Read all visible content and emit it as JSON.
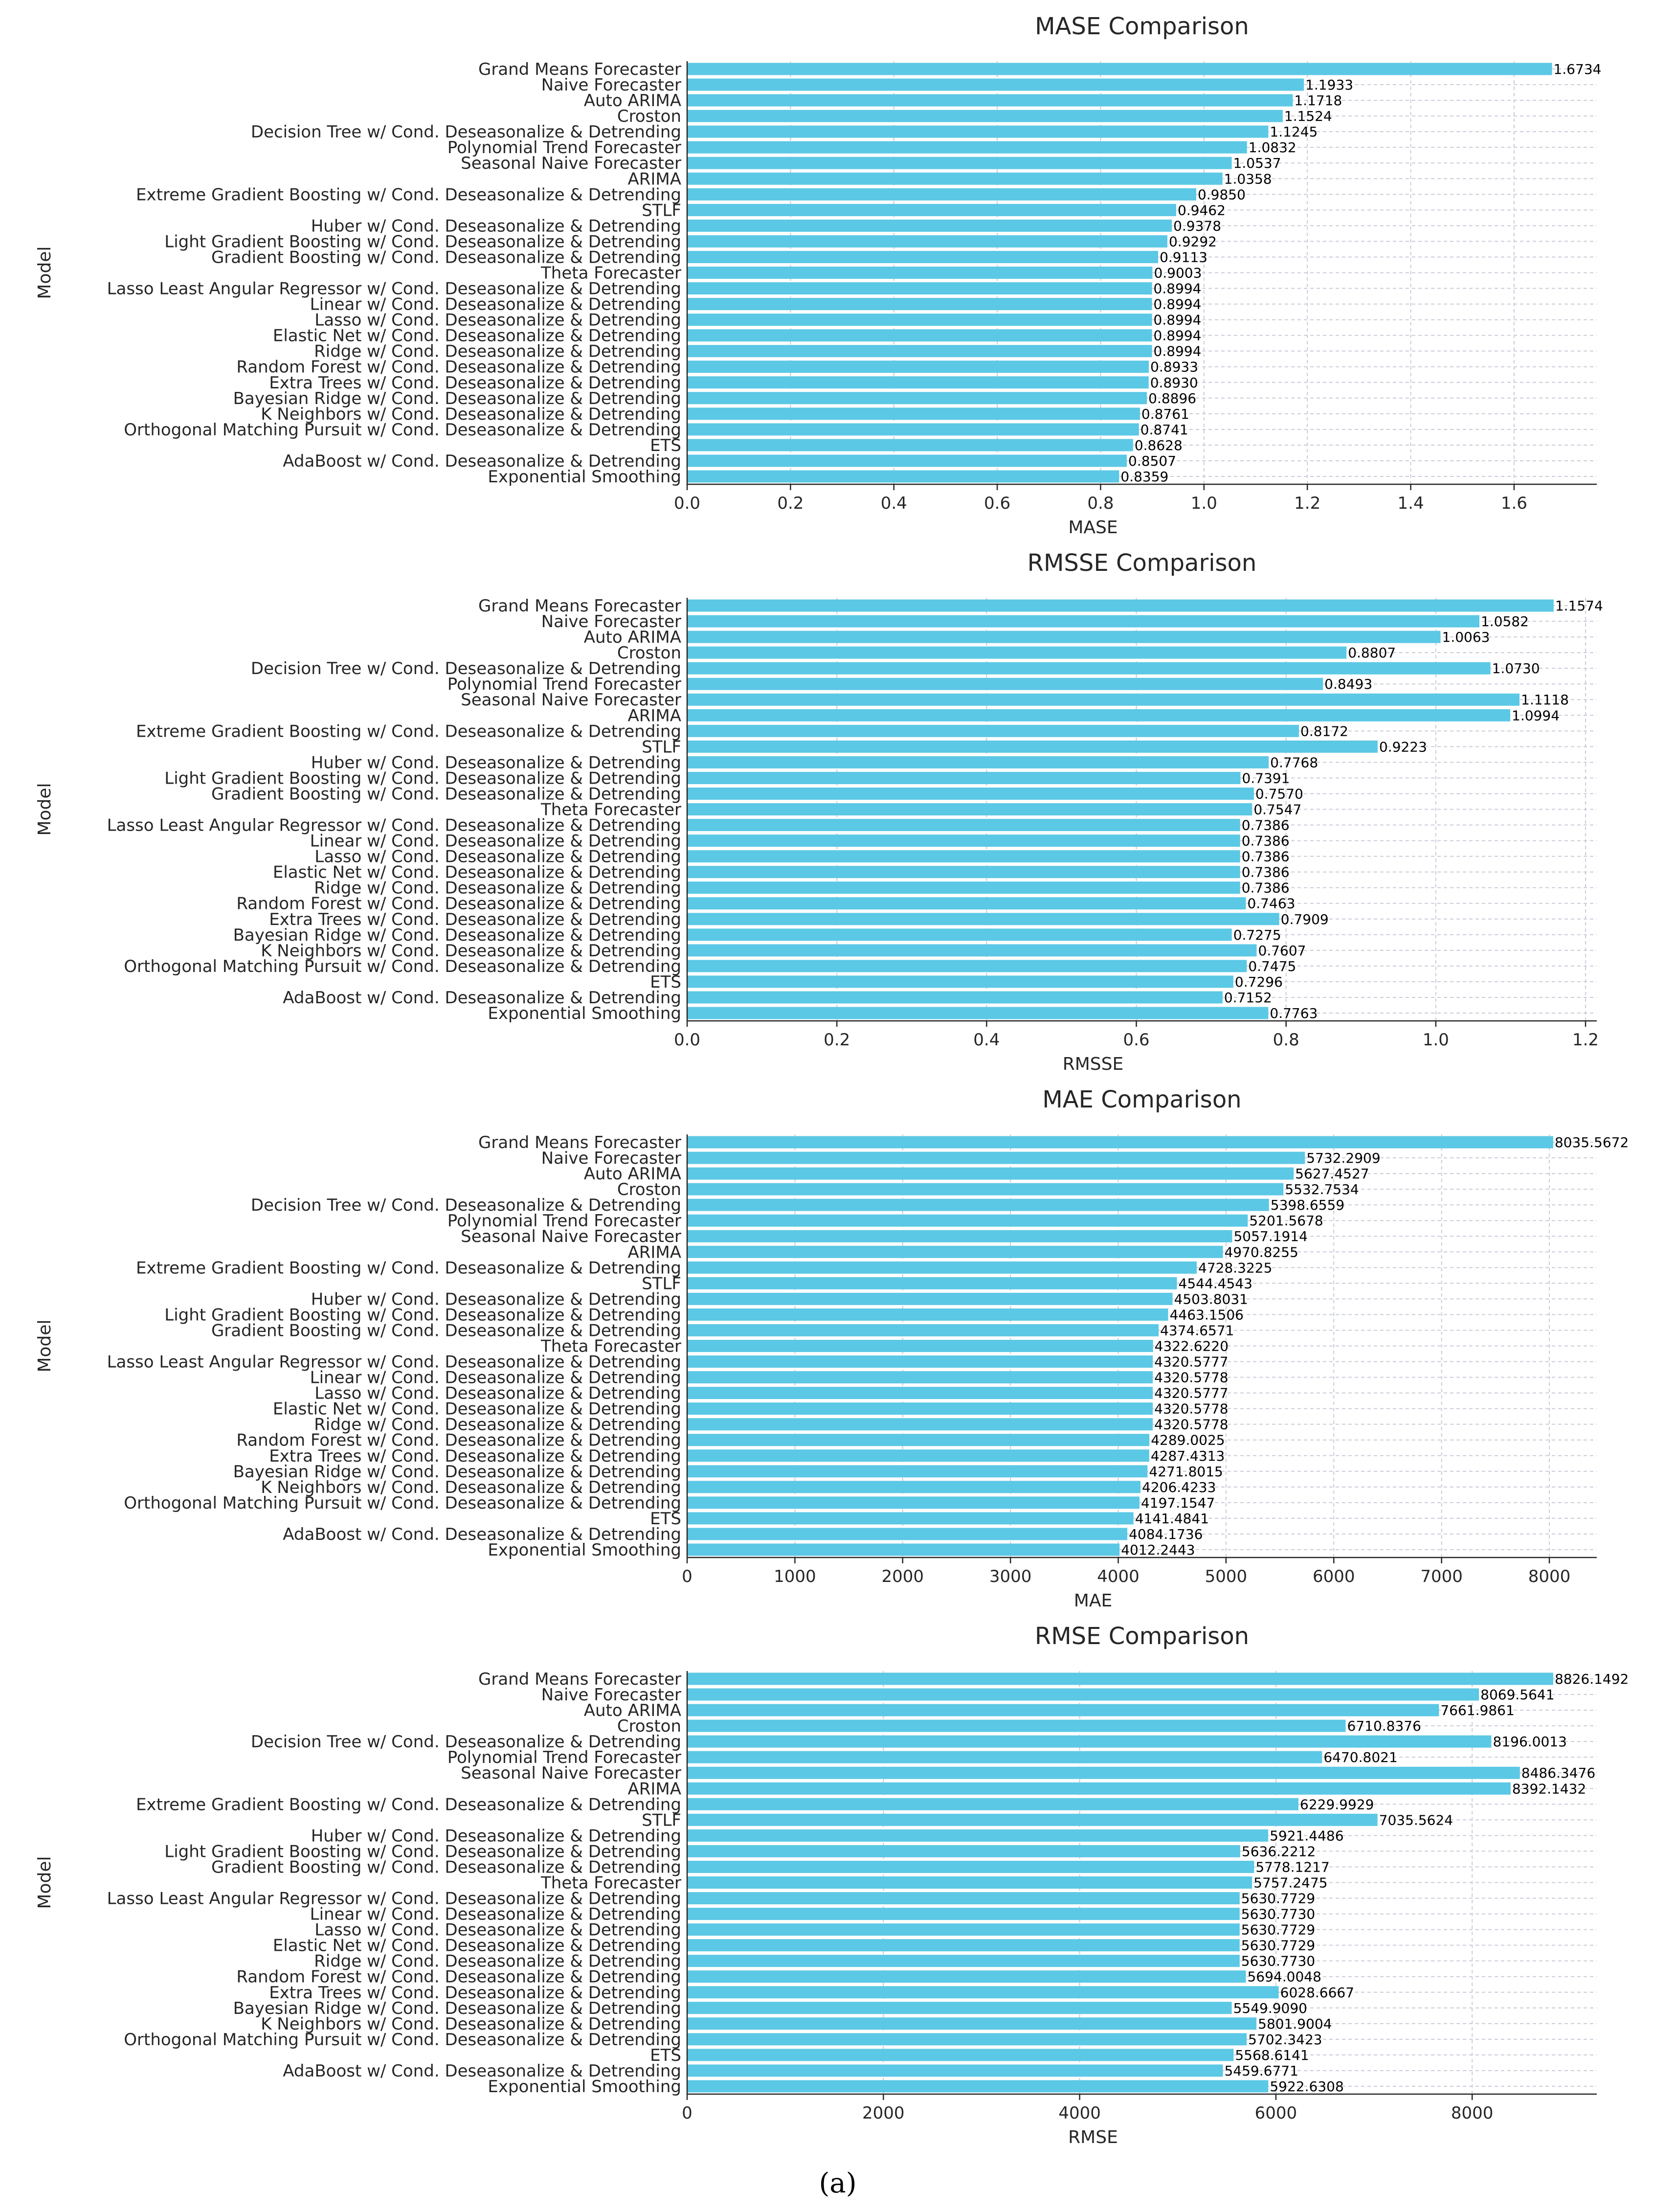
{
  "caption": "(a)",
  "chart_data": [
    {
      "type": "bar",
      "orientation": "horizontal",
      "title": "MASE Comparison",
      "xlabel": "MASE",
      "ylabel": "Model",
      "xlim": [
        0,
        1.76
      ],
      "xticks": [
        0,
        0.2,
        0.4,
        0.6,
        0.8,
        1.0,
        1.2,
        1.4,
        1.6
      ],
      "xtick_labels": [
        "0.0",
        "0.2",
        "0.4",
        "0.6",
        "0.8",
        "1.0",
        "1.2",
        "1.4",
        "1.6"
      ],
      "grid": true,
      "categories": [
        "Grand Means Forecaster",
        "Naive Forecaster",
        "Auto ARIMA",
        "Croston",
        "Decision Tree w/ Cond. Deseasonalize & Detrending",
        "Polynomial Trend Forecaster",
        "Seasonal Naive Forecaster",
        "ARIMA",
        "Extreme Gradient Boosting w/ Cond. Deseasonalize & Detrending",
        "STLF",
        "Huber w/ Cond. Deseasonalize & Detrending",
        "Light Gradient Boosting w/ Cond. Deseasonalize & Detrending",
        "Gradient Boosting w/ Cond. Deseasonalize & Detrending",
        "Theta Forecaster",
        "Lasso Least Angular Regressor w/ Cond. Deseasonalize & Detrending",
        "Linear w/ Cond. Deseasonalize & Detrending",
        "Lasso w/ Cond. Deseasonalize & Detrending",
        "Elastic Net w/ Cond. Deseasonalize & Detrending",
        "Ridge w/ Cond. Deseasonalize & Detrending",
        "Random Forest w/ Cond. Deseasonalize & Detrending",
        "Extra Trees w/ Cond. Deseasonalize & Detrending",
        "Bayesian Ridge w/ Cond. Deseasonalize & Detrending",
        "K Neighbors w/ Cond. Deseasonalize & Detrending",
        "Orthogonal Matching Pursuit w/ Cond. Deseasonalize & Detrending",
        "ETS",
        "AdaBoost w/ Cond. Deseasonalize & Detrending",
        "Exponential Smoothing"
      ],
      "values": [
        1.6734,
        1.1933,
        1.1718,
        1.1524,
        1.1245,
        1.0832,
        1.0537,
        1.0358,
        0.985,
        0.9462,
        0.9378,
        0.9292,
        0.9113,
        0.9003,
        0.8994,
        0.8994,
        0.8994,
        0.8994,
        0.8994,
        0.8933,
        0.893,
        0.8896,
        0.8761,
        0.8741,
        0.8628,
        0.8507,
        0.8359
      ],
      "value_labels": [
        "1.6734",
        "1.1933",
        "1.1718",
        "1.1524",
        "1.1245",
        "1.0832",
        "1.0537",
        "1.0358",
        "0.9850",
        "0.9462",
        "0.9378",
        "0.9292",
        "0.9113",
        "0.9003",
        "0.8994",
        "0.8994",
        "0.8994",
        "0.8994",
        "0.8994",
        "0.8933",
        "0.8930",
        "0.8896",
        "0.8761",
        "0.8741",
        "0.8628",
        "0.8507",
        "0.8359"
      ]
    },
    {
      "type": "bar",
      "orientation": "horizontal",
      "title": "RMSSE Comparison",
      "xlabel": "RMSSE",
      "ylabel": "Model",
      "xlim": [
        0,
        1.215
      ],
      "xticks": [
        0,
        0.2,
        0.4,
        0.6,
        0.8,
        1.0,
        1.2
      ],
      "xtick_labels": [
        "0.0",
        "0.2",
        "0.4",
        "0.6",
        "0.8",
        "1.0",
        "1.2"
      ],
      "grid": true,
      "categories": [
        "Grand Means Forecaster",
        "Naive Forecaster",
        "Auto ARIMA",
        "Croston",
        "Decision Tree w/ Cond. Deseasonalize & Detrending",
        "Polynomial Trend Forecaster",
        "Seasonal Naive Forecaster",
        "ARIMA",
        "Extreme Gradient Boosting w/ Cond. Deseasonalize & Detrending",
        "STLF",
        "Huber w/ Cond. Deseasonalize & Detrending",
        "Light Gradient Boosting w/ Cond. Deseasonalize & Detrending",
        "Gradient Boosting w/ Cond. Deseasonalize & Detrending",
        "Theta Forecaster",
        "Lasso Least Angular Regressor w/ Cond. Deseasonalize & Detrending",
        "Linear w/ Cond. Deseasonalize & Detrending",
        "Lasso w/ Cond. Deseasonalize & Detrending",
        "Elastic Net w/ Cond. Deseasonalize & Detrending",
        "Ridge w/ Cond. Deseasonalize & Detrending",
        "Random Forest w/ Cond. Deseasonalize & Detrending",
        "Extra Trees w/ Cond. Deseasonalize & Detrending",
        "Bayesian Ridge w/ Cond. Deseasonalize & Detrending",
        "K Neighbors w/ Cond. Deseasonalize & Detrending",
        "Orthogonal Matching Pursuit w/ Cond. Deseasonalize & Detrending",
        "ETS",
        "AdaBoost w/ Cond. Deseasonalize & Detrending",
        "Exponential Smoothing"
      ],
      "values": [
        1.1574,
        1.0582,
        1.0063,
        0.8807,
        1.073,
        0.8493,
        1.1118,
        1.0994,
        0.8172,
        0.9223,
        0.7768,
        0.7391,
        0.757,
        0.7547,
        0.7386,
        0.7386,
        0.7386,
        0.7386,
        0.7386,
        0.7463,
        0.7909,
        0.7275,
        0.7607,
        0.7475,
        0.7296,
        0.7152,
        0.7763
      ],
      "value_labels": [
        "1.1574",
        "1.0582",
        "1.0063",
        "0.8807",
        "1.0730",
        "0.8493",
        "1.1118",
        "1.0994",
        "0.8172",
        "0.9223",
        "0.7768",
        "0.7391",
        "0.7570",
        "0.7547",
        "0.7386",
        "0.7386",
        "0.7386",
        "0.7386",
        "0.7386",
        "0.7463",
        "0.7909",
        "0.7275",
        "0.7607",
        "0.7475",
        "0.7296",
        "0.7152",
        "0.7763"
      ]
    },
    {
      "type": "bar",
      "orientation": "horizontal",
      "title": "MAE Comparison",
      "xlabel": "MAE",
      "ylabel": "Model",
      "xlim": [
        0,
        8440
      ],
      "xticks": [
        0,
        1000,
        2000,
        3000,
        4000,
        5000,
        6000,
        7000,
        8000
      ],
      "xtick_labels": [
        "0",
        "1000",
        "2000",
        "3000",
        "4000",
        "5000",
        "6000",
        "7000",
        "8000"
      ],
      "grid": true,
      "categories": [
        "Grand Means Forecaster",
        "Naive Forecaster",
        "Auto ARIMA",
        "Croston",
        "Decision Tree w/ Cond. Deseasonalize & Detrending",
        "Polynomial Trend Forecaster",
        "Seasonal Naive Forecaster",
        "ARIMA",
        "Extreme Gradient Boosting w/ Cond. Deseasonalize & Detrending",
        "STLF",
        "Huber w/ Cond. Deseasonalize & Detrending",
        "Light Gradient Boosting w/ Cond. Deseasonalize & Detrending",
        "Gradient Boosting w/ Cond. Deseasonalize & Detrending",
        "Theta Forecaster",
        "Lasso Least Angular Regressor w/ Cond. Deseasonalize & Detrending",
        "Linear w/ Cond. Deseasonalize & Detrending",
        "Lasso w/ Cond. Deseasonalize & Detrending",
        "Elastic Net w/ Cond. Deseasonalize & Detrending",
        "Ridge w/ Cond. Deseasonalize & Detrending",
        "Random Forest w/ Cond. Deseasonalize & Detrending",
        "Extra Trees w/ Cond. Deseasonalize & Detrending",
        "Bayesian Ridge w/ Cond. Deseasonalize & Detrending",
        "K Neighbors w/ Cond. Deseasonalize & Detrending",
        "Orthogonal Matching Pursuit w/ Cond. Deseasonalize & Detrending",
        "ETS",
        "AdaBoost w/ Cond. Deseasonalize & Detrending",
        "Exponential Smoothing"
      ],
      "values": [
        8035.5672,
        5732.2909,
        5627.4527,
        5532.7534,
        5398.6559,
        5201.5678,
        5057.1914,
        4970.8255,
        4728.3225,
        4544.4543,
        4503.8031,
        4463.1506,
        4374.6571,
        4322.622,
        4320.5777,
        4320.5778,
        4320.5777,
        4320.5778,
        4320.5778,
        4289.0025,
        4287.4313,
        4271.8015,
        4206.4233,
        4197.1547,
        4141.4841,
        4084.1736,
        4012.2443
      ],
      "value_labels": [
        "8035.5672",
        "5732.2909",
        "5627.4527",
        "5532.7534",
        "5398.6559",
        "5201.5678",
        "5057.1914",
        "4970.8255",
        "4728.3225",
        "4544.4543",
        "4503.8031",
        "4463.1506",
        "4374.6571",
        "4322.6220",
        "4320.5777",
        "4320.5778",
        "4320.5777",
        "4320.5778",
        "4320.5778",
        "4289.0025",
        "4287.4313",
        "4271.8015",
        "4206.4233",
        "4197.1547",
        "4141.4841",
        "4084.1736",
        "4012.2443"
      ]
    },
    {
      "type": "bar",
      "orientation": "horizontal",
      "title": "RMSE Comparison",
      "xlabel": "RMSE",
      "ylabel": "Model",
      "xlim": [
        0,
        9270
      ],
      "xticks": [
        0,
        2000,
        4000,
        6000,
        8000
      ],
      "xtick_labels": [
        "0",
        "2000",
        "4000",
        "6000",
        "8000"
      ],
      "grid": true,
      "categories": [
        "Grand Means Forecaster",
        "Naive Forecaster",
        "Auto ARIMA",
        "Croston",
        "Decision Tree w/ Cond. Deseasonalize & Detrending",
        "Polynomial Trend Forecaster",
        "Seasonal Naive Forecaster",
        "ARIMA",
        "Extreme Gradient Boosting w/ Cond. Deseasonalize & Detrending",
        "STLF",
        "Huber w/ Cond. Deseasonalize & Detrending",
        "Light Gradient Boosting w/ Cond. Deseasonalize & Detrending",
        "Gradient Boosting w/ Cond. Deseasonalize & Detrending",
        "Theta Forecaster",
        "Lasso Least Angular Regressor w/ Cond. Deseasonalize & Detrending",
        "Linear w/ Cond. Deseasonalize & Detrending",
        "Lasso w/ Cond. Deseasonalize & Detrending",
        "Elastic Net w/ Cond. Deseasonalize & Detrending",
        "Ridge w/ Cond. Deseasonalize & Detrending",
        "Random Forest w/ Cond. Deseasonalize & Detrending",
        "Extra Trees w/ Cond. Deseasonalize & Detrending",
        "Bayesian Ridge w/ Cond. Deseasonalize & Detrending",
        "K Neighbors w/ Cond. Deseasonalize & Detrending",
        "Orthogonal Matching Pursuit w/ Cond. Deseasonalize & Detrending",
        "ETS",
        "AdaBoost w/ Cond. Deseasonalize & Detrending",
        "Exponential Smoothing"
      ],
      "values": [
        8826.1492,
        8069.5641,
        7661.9861,
        6710.8376,
        8196.0013,
        6470.8021,
        8486.3476,
        8392.1432,
        6229.9929,
        7035.5624,
        5921.4486,
        5636.2212,
        5778.1217,
        5757.2475,
        5630.7729,
        5630.773,
        5630.7729,
        5630.7729,
        5630.773,
        5694.0048,
        6028.6667,
        5549.909,
        5801.9004,
        5702.3423,
        5568.6141,
        5459.6771,
        5922.6308
      ],
      "value_labels": [
        "8826.1492",
        "8069.5641",
        "7661.9861",
        "6710.8376",
        "8196.0013",
        "6470.8021",
        "8486.3476",
        "8392.1432",
        "6229.9929",
        "7035.5624",
        "5921.4486",
        "5636.2212",
        "5778.1217",
        "5757.2475",
        "5630.7729",
        "5630.7730",
        "5630.7729",
        "5630.7729",
        "5630.7730",
        "5694.0048",
        "6028.6667",
        "5549.9090",
        "5801.9004",
        "5702.3423",
        "5568.6141",
        "5459.6771",
        "5922.6308"
      ]
    }
  ]
}
